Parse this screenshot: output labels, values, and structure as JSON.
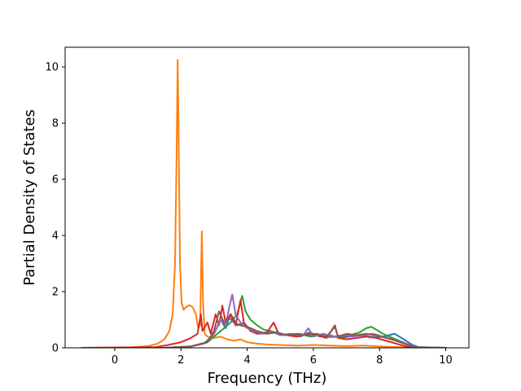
{
  "chart_data": {
    "type": "line",
    "title": "",
    "xlabel": "Frequency (THz)",
    "ylabel": "Partial Density of States",
    "xlim": [
      -1.5,
      10.7
    ],
    "ylim": [
      0,
      10.7
    ],
    "xticks": [
      0,
      2,
      4,
      6,
      8,
      10
    ],
    "yticks": [
      0,
      2,
      4,
      6,
      8,
      10
    ],
    "grid": false,
    "legend": "none",
    "series": [
      {
        "color": "#1f77b4",
        "points": [
          [
            -1.0,
            0
          ],
          [
            1.5,
            0
          ],
          [
            2.3,
            0.05
          ],
          [
            2.7,
            0.15
          ],
          [
            3.0,
            0.5
          ],
          [
            3.2,
            1.0
          ],
          [
            3.35,
            0.7
          ],
          [
            3.5,
            1.2
          ],
          [
            3.7,
            0.8
          ],
          [
            3.9,
            0.9
          ],
          [
            4.1,
            0.6
          ],
          [
            4.4,
            0.5
          ],
          [
            4.7,
            0.6
          ],
          [
            5.0,
            0.45
          ],
          [
            5.3,
            0.5
          ],
          [
            5.6,
            0.4
          ],
          [
            5.9,
            0.55
          ],
          [
            6.2,
            0.4
          ],
          [
            6.5,
            0.45
          ],
          [
            6.8,
            0.35
          ],
          [
            7.1,
            0.4
          ],
          [
            7.4,
            0.45
          ],
          [
            7.7,
            0.4
          ],
          [
            8.0,
            0.38
          ],
          [
            8.2,
            0.42
          ],
          [
            8.45,
            0.5
          ],
          [
            8.6,
            0.4
          ],
          [
            8.8,
            0.25
          ],
          [
            9.0,
            0.1
          ],
          [
            9.2,
            0.02
          ],
          [
            10.0,
            0
          ]
        ]
      },
      {
        "color": "#ff7f0e",
        "points": [
          [
            -1.0,
            0
          ],
          [
            0.5,
            0.02
          ],
          [
            1.0,
            0.06
          ],
          [
            1.3,
            0.15
          ],
          [
            1.5,
            0.3
          ],
          [
            1.65,
            0.6
          ],
          [
            1.75,
            1.2
          ],
          [
            1.82,
            3.0
          ],
          [
            1.87,
            7.0
          ],
          [
            1.9,
            10.25
          ],
          [
            1.93,
            7.5
          ],
          [
            1.97,
            3.0
          ],
          [
            2.02,
            1.6
          ],
          [
            2.08,
            1.35
          ],
          [
            2.15,
            1.45
          ],
          [
            2.25,
            1.52
          ],
          [
            2.35,
            1.45
          ],
          [
            2.45,
            1.2
          ],
          [
            2.52,
            0.7
          ],
          [
            2.58,
            0.8
          ],
          [
            2.63,
            4.15
          ],
          [
            2.67,
            1.5
          ],
          [
            2.72,
            0.5
          ],
          [
            2.8,
            0.4
          ],
          [
            3.0,
            0.35
          ],
          [
            3.2,
            0.4
          ],
          [
            3.4,
            0.3
          ],
          [
            3.6,
            0.25
          ],
          [
            3.8,
            0.3
          ],
          [
            4.0,
            0.2
          ],
          [
            4.3,
            0.15
          ],
          [
            4.6,
            0.12
          ],
          [
            5.0,
            0.1
          ],
          [
            5.5,
            0.08
          ],
          [
            6.0,
            0.1
          ],
          [
            6.5,
            0.08
          ],
          [
            7.0,
            0.06
          ],
          [
            7.5,
            0.08
          ],
          [
            8.0,
            0.05
          ],
          [
            8.5,
            0.03
          ],
          [
            9.0,
            0.01
          ],
          [
            10.0,
            0
          ]
        ]
      },
      {
        "color": "#2ca02c",
        "points": [
          [
            -1.0,
            0
          ],
          [
            1.5,
            0
          ],
          [
            2.3,
            0.05
          ],
          [
            2.8,
            0.2
          ],
          [
            3.0,
            0.4
          ],
          [
            3.3,
            0.7
          ],
          [
            3.5,
            0.9
          ],
          [
            3.7,
            1.2
          ],
          [
            3.85,
            1.85
          ],
          [
            3.95,
            1.3
          ],
          [
            4.1,
            1.0
          ],
          [
            4.3,
            0.8
          ],
          [
            4.5,
            0.65
          ],
          [
            4.7,
            0.6
          ],
          [
            5.0,
            0.5
          ],
          [
            5.3,
            0.45
          ],
          [
            5.6,
            0.5
          ],
          [
            5.9,
            0.4
          ],
          [
            6.2,
            0.45
          ],
          [
            6.5,
            0.38
          ],
          [
            6.8,
            0.4
          ],
          [
            7.1,
            0.45
          ],
          [
            7.4,
            0.55
          ],
          [
            7.6,
            0.7
          ],
          [
            7.75,
            0.75
          ],
          [
            7.9,
            0.65
          ],
          [
            8.1,
            0.5
          ],
          [
            8.3,
            0.4
          ],
          [
            8.5,
            0.3
          ],
          [
            8.7,
            0.2
          ],
          [
            8.9,
            0.1
          ],
          [
            9.1,
            0.03
          ],
          [
            10.0,
            0
          ]
        ]
      },
      {
        "color": "#d62728",
        "points": [
          [
            -1.0,
            0
          ],
          [
            1.2,
            0.02
          ],
          [
            1.6,
            0.1
          ],
          [
            2.0,
            0.2
          ],
          [
            2.3,
            0.35
          ],
          [
            2.5,
            0.5
          ],
          [
            2.6,
            1.2
          ],
          [
            2.65,
            0.6
          ],
          [
            2.8,
            0.9
          ],
          [
            2.9,
            0.5
          ],
          [
            3.05,
            1.2
          ],
          [
            3.15,
            0.8
          ],
          [
            3.25,
            1.5
          ],
          [
            3.35,
            0.9
          ],
          [
            3.5,
            1.2
          ],
          [
            3.65,
            0.8
          ],
          [
            3.8,
            1.7
          ],
          [
            3.9,
            0.9
          ],
          [
            4.1,
            0.6
          ],
          [
            4.3,
            0.5
          ],
          [
            4.6,
            0.55
          ],
          [
            4.8,
            0.9
          ],
          [
            4.95,
            0.5
          ],
          [
            5.2,
            0.45
          ],
          [
            5.5,
            0.4
          ],
          [
            5.8,
            0.5
          ],
          [
            6.1,
            0.45
          ],
          [
            6.4,
            0.35
          ],
          [
            6.65,
            0.8
          ],
          [
            6.75,
            0.35
          ],
          [
            7.0,
            0.3
          ],
          [
            7.3,
            0.35
          ],
          [
            7.6,
            0.4
          ],
          [
            7.9,
            0.35
          ],
          [
            8.2,
            0.25
          ],
          [
            8.5,
            0.15
          ],
          [
            8.8,
            0.05
          ],
          [
            9.0,
            0.01
          ],
          [
            10.0,
            0
          ]
        ]
      },
      {
        "color": "#9467bd",
        "points": [
          [
            -1.0,
            0
          ],
          [
            1.5,
            0
          ],
          [
            2.3,
            0.05
          ],
          [
            2.8,
            0.2
          ],
          [
            3.0,
            0.5
          ],
          [
            3.2,
            1.0
          ],
          [
            3.35,
            0.8
          ],
          [
            3.45,
            1.4
          ],
          [
            3.55,
            1.9
          ],
          [
            3.65,
            1.2
          ],
          [
            3.8,
            0.9
          ],
          [
            4.0,
            0.7
          ],
          [
            4.2,
            0.6
          ],
          [
            4.5,
            0.5
          ],
          [
            4.8,
            0.55
          ],
          [
            5.1,
            0.45
          ],
          [
            5.4,
            0.5
          ],
          [
            5.7,
            0.45
          ],
          [
            5.85,
            0.7
          ],
          [
            6.0,
            0.4
          ],
          [
            6.3,
            0.5
          ],
          [
            6.6,
            0.4
          ],
          [
            6.9,
            0.45
          ],
          [
            7.2,
            0.4
          ],
          [
            7.5,
            0.45
          ],
          [
            7.8,
            0.5
          ],
          [
            8.1,
            0.4
          ],
          [
            8.4,
            0.3
          ],
          [
            8.7,
            0.2
          ],
          [
            9.0,
            0.06
          ],
          [
            9.2,
            0.01
          ],
          [
            10.0,
            0
          ]
        ]
      },
      {
        "color": "#8c564b",
        "points": [
          [
            -1.0,
            0
          ],
          [
            1.5,
            0
          ],
          [
            2.3,
            0.05
          ],
          [
            2.8,
            0.2
          ],
          [
            3.0,
            0.6
          ],
          [
            3.15,
            1.3
          ],
          [
            3.3,
            0.9
          ],
          [
            3.45,
            1.1
          ],
          [
            3.6,
            0.9
          ],
          [
            3.8,
            0.8
          ],
          [
            4.0,
            0.75
          ],
          [
            4.3,
            0.6
          ],
          [
            4.6,
            0.5
          ],
          [
            4.9,
            0.55
          ],
          [
            5.2,
            0.45
          ],
          [
            5.5,
            0.5
          ],
          [
            5.8,
            0.45
          ],
          [
            6.1,
            0.5
          ],
          [
            6.4,
            0.4
          ],
          [
            6.65,
            0.75
          ],
          [
            6.75,
            0.4
          ],
          [
            7.0,
            0.5
          ],
          [
            7.3,
            0.45
          ],
          [
            7.6,
            0.5
          ],
          [
            7.9,
            0.45
          ],
          [
            8.2,
            0.35
          ],
          [
            8.5,
            0.25
          ],
          [
            8.8,
            0.12
          ],
          [
            9.0,
            0.04
          ],
          [
            9.2,
            0.0
          ],
          [
            10.0,
            0
          ]
        ]
      }
    ]
  }
}
